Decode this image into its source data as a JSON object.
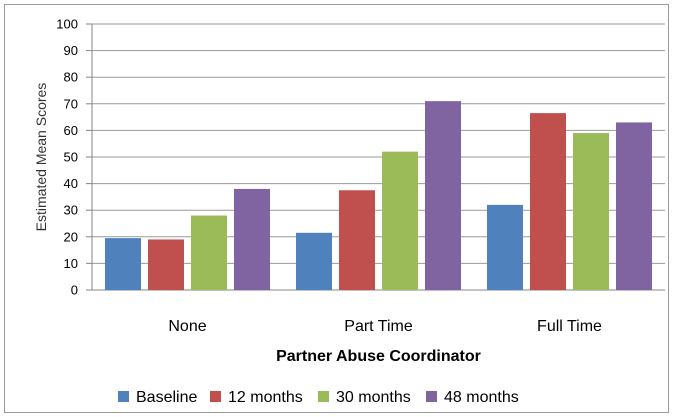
{
  "chart_data": {
    "type": "bar",
    "title": "",
    "xlabel": "Partner Abuse Coordinator",
    "ylabel": "Estimated Mean Scores",
    "ylim": [
      0,
      100
    ],
    "yticks": [
      0,
      10,
      20,
      30,
      40,
      50,
      60,
      70,
      80,
      90,
      100
    ],
    "grid": true,
    "legend_position": "bottom",
    "categories": [
      "None",
      "Part Time",
      "Full Time"
    ],
    "series": [
      {
        "name": "Baseline",
        "color": "#4f81bd",
        "values": [
          19.5,
          21.5,
          32
        ]
      },
      {
        "name": "12 months",
        "color": "#c0504d",
        "values": [
          19,
          37.5,
          66.5
        ]
      },
      {
        "name": "30 months",
        "color": "#9bbb59",
        "values": [
          28,
          52,
          59
        ]
      },
      {
        "name": "48 months",
        "color": "#8064a2",
        "values": [
          38,
          71,
          63
        ]
      }
    ]
  }
}
